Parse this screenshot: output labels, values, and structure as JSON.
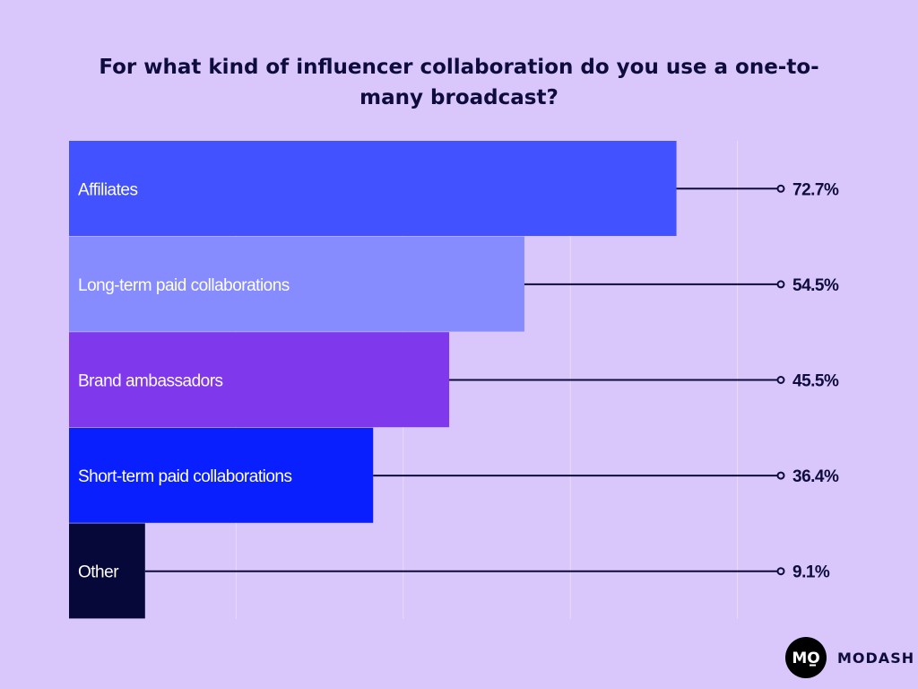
{
  "brand": {
    "name": "MODASH",
    "logo_icon": "modash-logo-icon",
    "logo_text": "MO"
  },
  "colors": {
    "background": "#d9c6fa",
    "text": "#0d0c3d",
    "line": "#0d0c3d",
    "grid": "#e6dcfb"
  },
  "chart_data": {
    "type": "bar",
    "orientation": "horizontal",
    "title": "For what kind of influencer collaboration do you use a one-to-many broadcast?",
    "categories": [
      "Affiliates",
      "Long-term paid collaborations",
      "Brand ambassadors",
      "Short-term paid collaborations",
      "Other"
    ],
    "values": [
      72.7,
      54.5,
      45.5,
      36.4,
      9.1
    ],
    "value_labels": [
      "72.7%",
      "54.5%",
      "45.5%",
      "36.4%",
      "9.1%"
    ],
    "bar_colors": [
      "#4252fe",
      "#868cfe",
      "#7f38ec",
      "#0a1ffe",
      "#07083a"
    ],
    "xlim": [
      0,
      100
    ],
    "unit": "%",
    "grid": true,
    "legend": "none"
  }
}
